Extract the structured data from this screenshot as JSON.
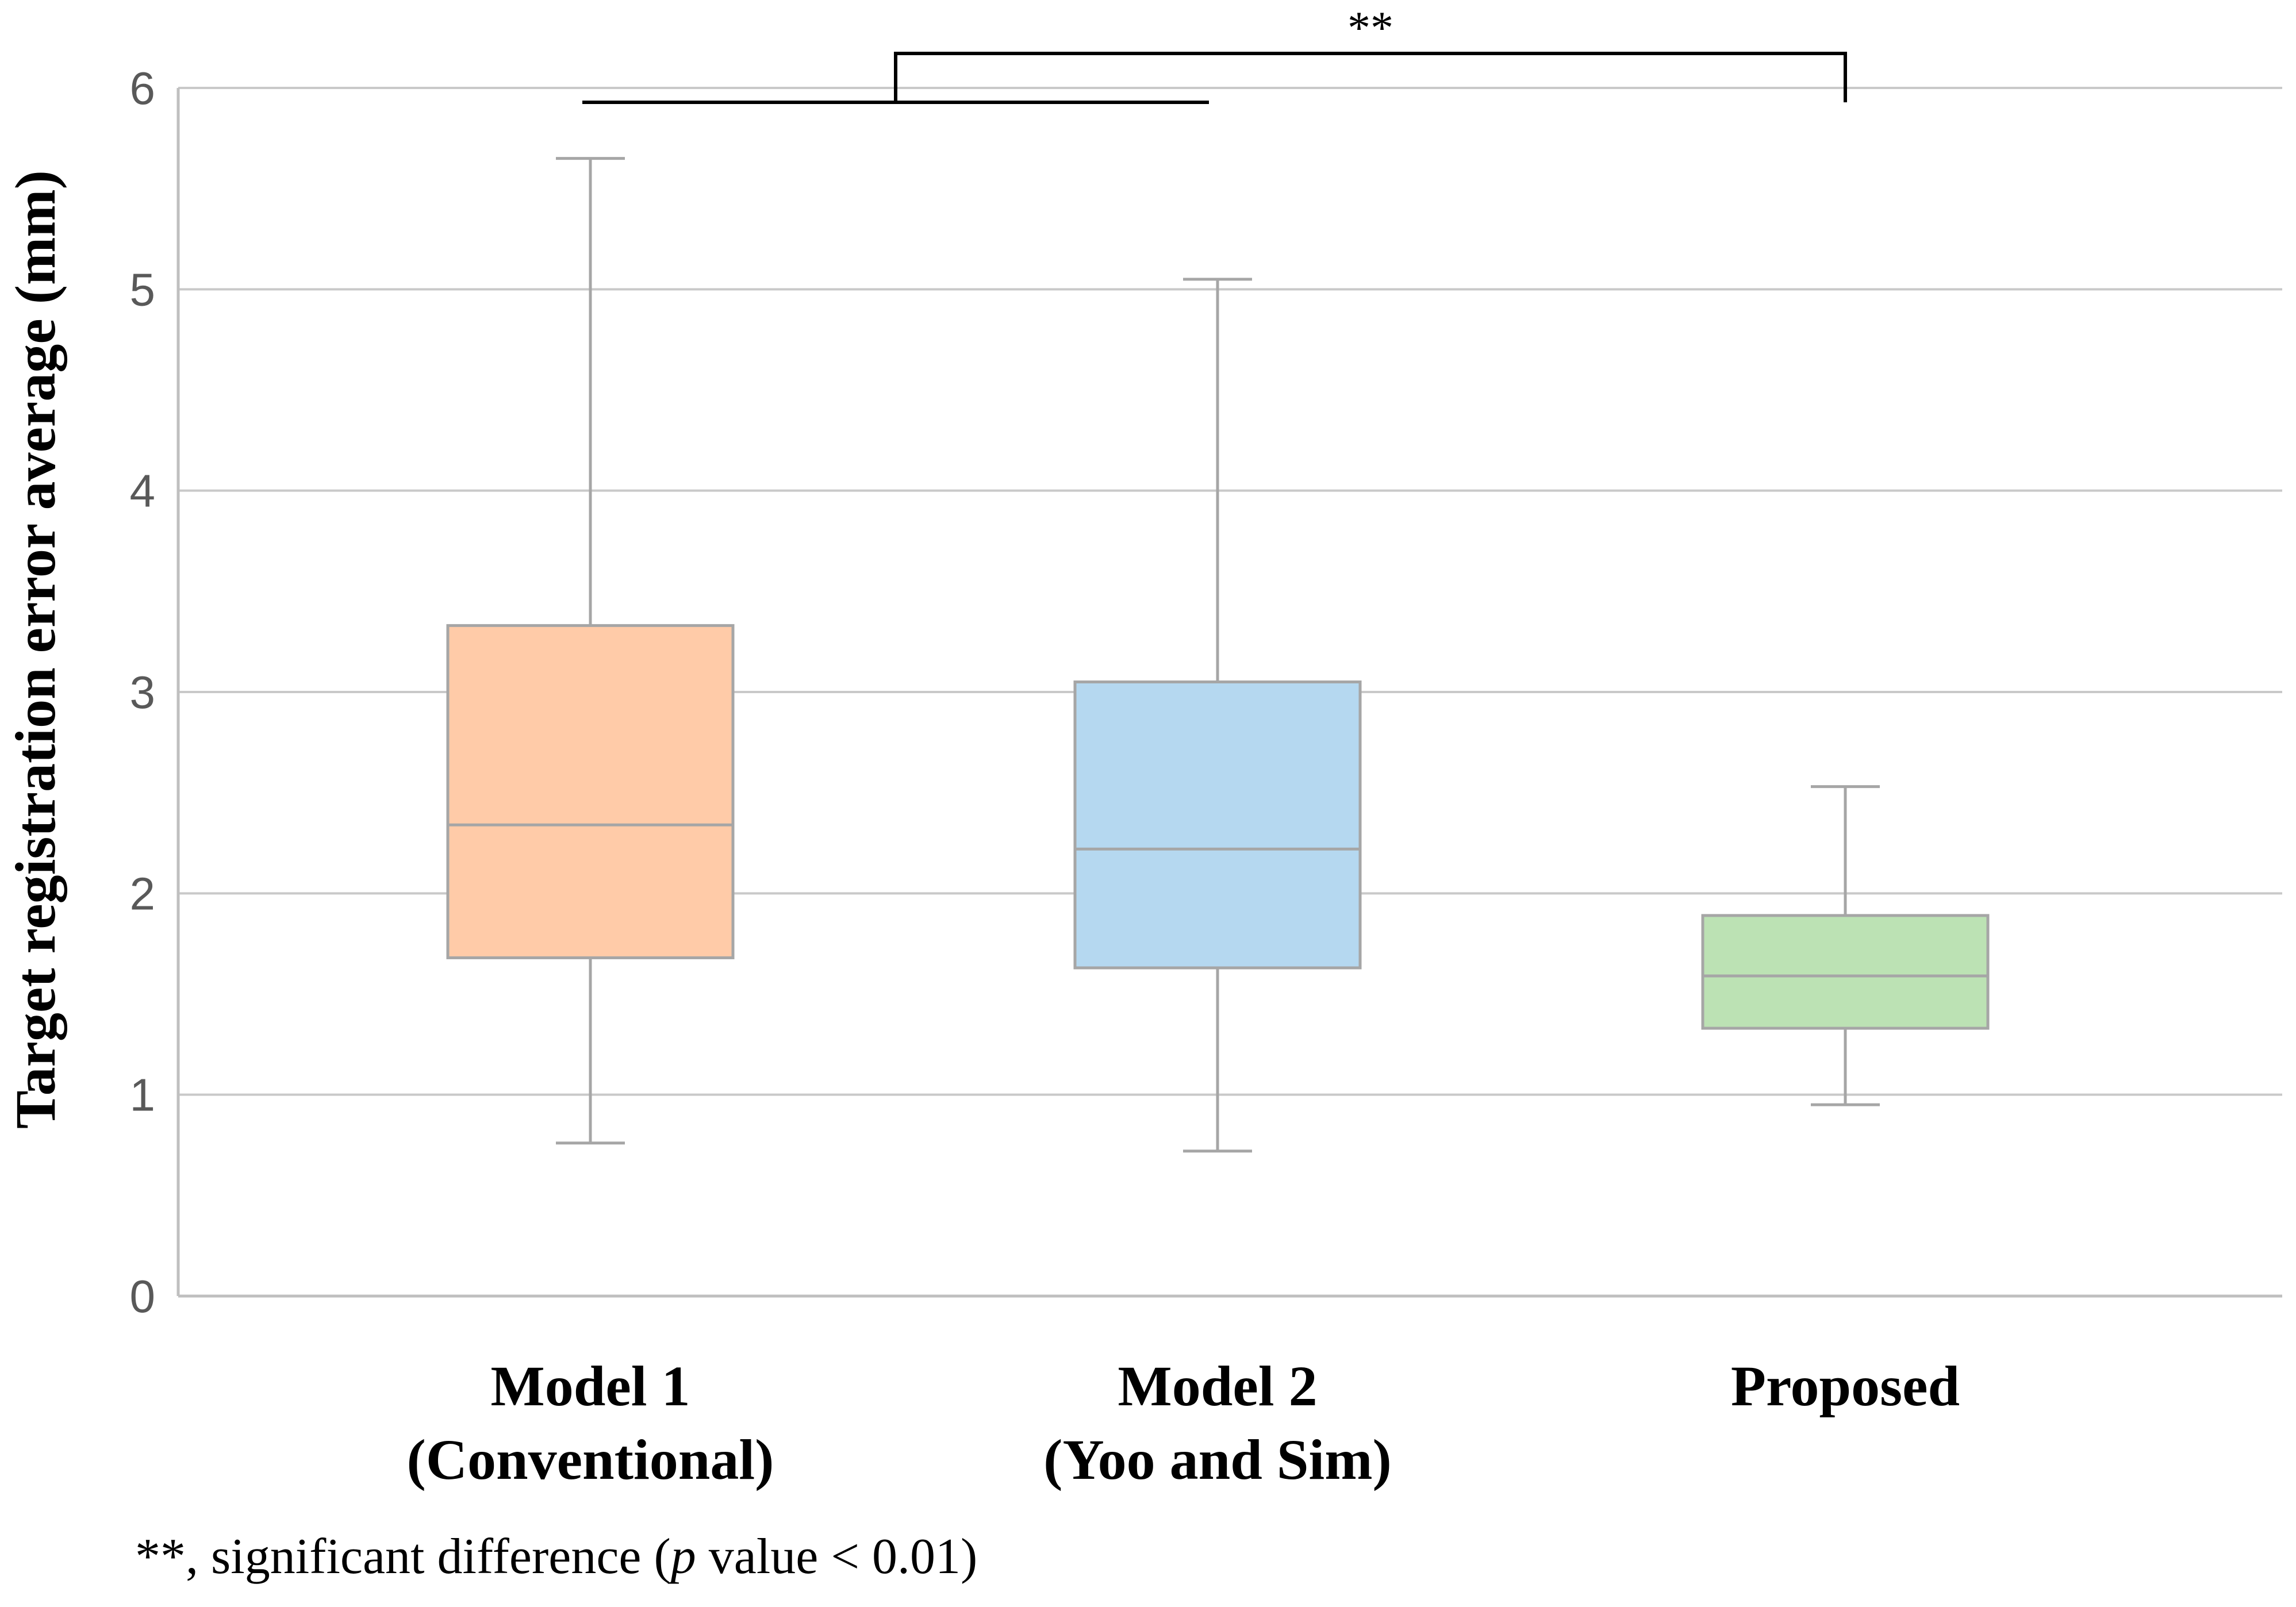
{
  "chart_data": {
    "type": "box",
    "title": "",
    "xlabel": "",
    "ylabel": "Target registration error average (mm)",
    "ylim": [
      0,
      6
    ],
    "yticks": [
      0,
      1,
      2,
      3,
      4,
      5,
      6
    ],
    "grid": true,
    "series": [
      {
        "name": "Model 1 (Conventional)",
        "label_lines": [
          "Model 1",
          "(Conventional)"
        ],
        "color": "#FFCBA8",
        "stroke": "#A6A6A6",
        "whisker_low": 0.76,
        "q1": 1.68,
        "median": 2.34,
        "q3": 3.33,
        "whisker_high": 5.65
      },
      {
        "name": "Model 2 (Yoo and Sim)",
        "label_lines": [
          "Model 2",
          "(Yoo and Sim)"
        ],
        "color": "#B5D8F0",
        "stroke": "#A6A6A6",
        "whisker_low": 0.72,
        "q1": 1.63,
        "median": 2.22,
        "q3": 3.05,
        "whisker_high": 5.05
      },
      {
        "name": "Proposed",
        "label_lines": [
          "Proposed"
        ],
        "color": "#BCE2B4",
        "stroke": "#A6A6A6",
        "whisker_low": 0.95,
        "q1": 1.33,
        "median": 1.59,
        "q3": 1.89,
        "whisker_high": 2.53
      }
    ],
    "annotations": [
      {
        "type": "significance-bracket",
        "from": "Model 1 and Model 2 (group)",
        "to": "Proposed",
        "text": "**"
      }
    ]
  },
  "footnote": {
    "prefix": "**, significant difference (",
    "italic": "p",
    "suffix": " value < 0.01)"
  }
}
